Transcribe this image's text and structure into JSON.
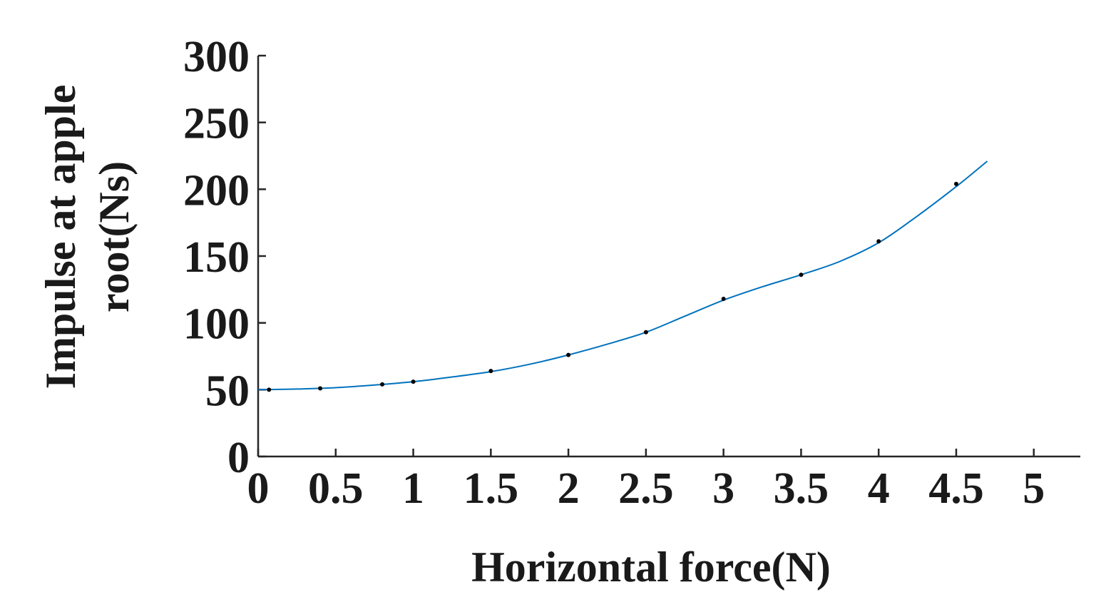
{
  "chart_data": {
    "type": "line",
    "title": "",
    "xlabel": "Horizontal force(N)",
    "ylabel_lines": [
      "Impulse at apple",
      "root(Ns)"
    ],
    "xlim": [
      0,
      5.3
    ],
    "ylim": [
      0,
      300
    ],
    "xticks": [
      0,
      0.5,
      1,
      1.5,
      2,
      2.5,
      3,
      3.5,
      4,
      4.5,
      5
    ],
    "xtick_labels": [
      "0",
      "0.5",
      "1",
      "1.5",
      "2",
      "2.5",
      "3",
      "3.5",
      "4",
      "4.5",
      "5"
    ],
    "yticks": [
      0,
      50,
      100,
      150,
      200,
      250,
      300
    ],
    "ytick_labels": [
      "0",
      "50",
      "100",
      "150",
      "200",
      "250",
      "300"
    ],
    "grid": false,
    "legend": "none",
    "colors": {
      "line": "#0072bd",
      "markers": "#000000",
      "axes": "#262626"
    },
    "series": [
      {
        "style": "markers",
        "x": [
          0.07,
          0.4,
          0.8,
          1.0,
          1.5,
          2.0,
          2.5,
          3.0,
          3.5,
          4.0,
          4.5
        ],
        "y": [
          50,
          51,
          54,
          56,
          64,
          76,
          93,
          118,
          136,
          161,
          204
        ]
      },
      {
        "style": "line",
        "x": [
          0,
          0.25,
          0.5,
          0.75,
          1.0,
          1.25,
          1.5,
          1.75,
          2.0,
          2.25,
          2.5,
          2.75,
          3.0,
          3.25,
          3.5,
          3.75,
          4.0,
          4.25,
          4.5,
          4.7
        ],
        "y": [
          50,
          50.5,
          51.5,
          53.5,
          56,
          59.5,
          63.5,
          69,
          76,
          84,
          93,
          105,
          117,
          127,
          136,
          146,
          160,
          180,
          202,
          221
        ]
      }
    ]
  }
}
